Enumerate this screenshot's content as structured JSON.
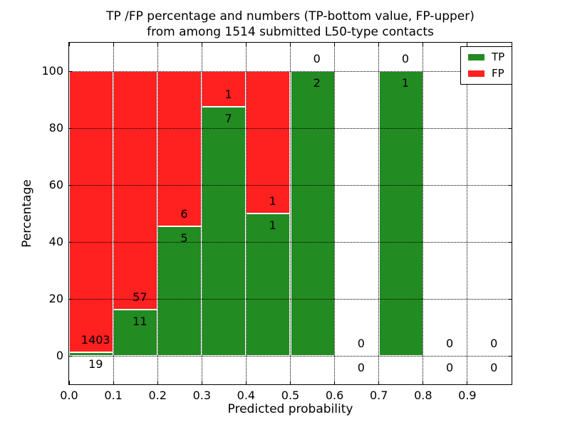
{
  "title": {
    "line1": "TP /FP percentage and numbers (TP-bottom value, FP-upper)",
    "line2": "from among 1514 submitted L50-type contacts"
  },
  "axes": {
    "xlabel": "Predicted probability",
    "ylabel": "Percentage",
    "xlim": [
      0.0,
      1.0
    ],
    "ylim": [
      -10,
      110
    ],
    "grid": "dotted",
    "x_ticks": [
      {
        "value": 0.0,
        "label": "0.0"
      },
      {
        "value": 0.1,
        "label": "0.1"
      },
      {
        "value": 0.2,
        "label": "0.2"
      },
      {
        "value": 0.3,
        "label": "0.3"
      },
      {
        "value": 0.4,
        "label": "0.4"
      },
      {
        "value": 0.5,
        "label": "0.5"
      },
      {
        "value": 0.6,
        "label": "0.6"
      },
      {
        "value": 0.7,
        "label": "0.7"
      },
      {
        "value": 0.8,
        "label": "0.8"
      },
      {
        "value": 0.9,
        "label": "0.9"
      }
    ],
    "y_ticks": [
      {
        "value": 0,
        "label": "0"
      },
      {
        "value": 20,
        "label": "20"
      },
      {
        "value": 40,
        "label": "40"
      },
      {
        "value": 60,
        "label": "60"
      },
      {
        "value": 80,
        "label": "80"
      },
      {
        "value": 100,
        "label": "100"
      }
    ]
  },
  "legend": {
    "position": "upper right",
    "items": [
      {
        "label": "TP",
        "color": "#228B22"
      },
      {
        "label": "FP",
        "color": "#FF2020"
      }
    ]
  },
  "colors": {
    "tp": "#228B22",
    "fp": "#FF2020",
    "bar_edge": "#FFFFFF",
    "grid": "#000000",
    "text": "#000000",
    "background": "#FFFFFF"
  },
  "chart_data": {
    "type": "bar",
    "stacked": true,
    "title": "TP /FP percentage and numbers (TP-bottom value, FP-upper) from among 1514 submitted L50-type contacts",
    "xlabel": "Predicted probability",
    "ylabel": "Percentage",
    "total_contacts": 1514,
    "bin_width": 0.1,
    "annotation_rule": "FP count shown above TP/FP boundary, TP count shown below it, at x = bin_left + 0.06",
    "bins": [
      {
        "x_range": [
          0.0,
          0.1
        ],
        "tp_count": 19,
        "fp_count": 1403,
        "tp_pct": 1.34,
        "fp_pct": 98.66
      },
      {
        "x_range": [
          0.1,
          0.2
        ],
        "tp_count": 11,
        "fp_count": 57,
        "tp_pct": 16.18,
        "fp_pct": 83.82
      },
      {
        "x_range": [
          0.2,
          0.3
        ],
        "tp_count": 5,
        "fp_count": 6,
        "tp_pct": 45.45,
        "fp_pct": 54.55
      },
      {
        "x_range": [
          0.3,
          0.4
        ],
        "tp_count": 7,
        "fp_count": 1,
        "tp_pct": 87.5,
        "fp_pct": 12.5
      },
      {
        "x_range": [
          0.4,
          0.5
        ],
        "tp_count": 1,
        "fp_count": 1,
        "tp_pct": 50.0,
        "fp_pct": 50.0
      },
      {
        "x_range": [
          0.5,
          0.6
        ],
        "tp_count": 2,
        "fp_count": 0,
        "tp_pct": 100.0,
        "fp_pct": 0.0
      },
      {
        "x_range": [
          0.6,
          0.7
        ],
        "tp_count": 0,
        "fp_count": 0,
        "tp_pct": 0.0,
        "fp_pct": 0.0
      },
      {
        "x_range": [
          0.7,
          0.8
        ],
        "tp_count": 1,
        "fp_count": 0,
        "tp_pct": 100.0,
        "fp_pct": 0.0
      },
      {
        "x_range": [
          0.8,
          0.9
        ],
        "tp_count": 0,
        "fp_count": 0,
        "tp_pct": 0.0,
        "fp_pct": 0.0
      },
      {
        "x_range": [
          0.9,
          1.0
        ],
        "tp_count": 0,
        "fp_count": 0,
        "tp_pct": 0.0,
        "fp_pct": 0.0
      }
    ]
  }
}
